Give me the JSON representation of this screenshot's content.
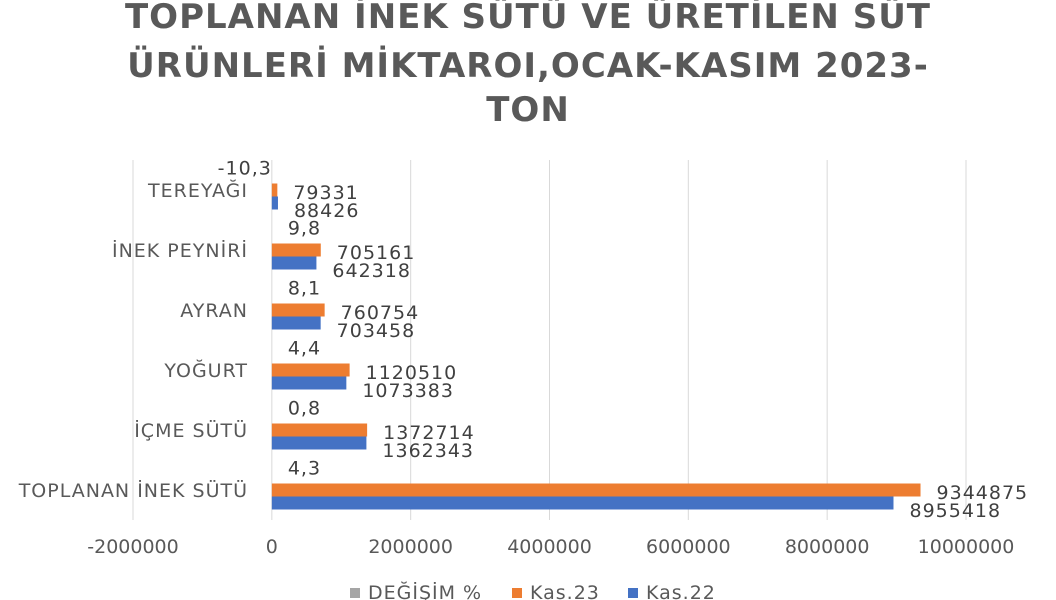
{
  "chart_data": {
    "type": "bar",
    "orientation": "horizontal",
    "title": "TOPLANAN İNEK SÜTÜ VE ÜRETİLEN SÜT ÜRÜNLERİ MİKTAROI,OCAK-KASIM 2023-TON",
    "title_lines": [
      "TOPLANAN İNEK SÜTÜ VE ÜRETİLEN SÜT",
      "ÜRÜNLERİ MİKTAROI,OCAK-KASIM 2023-",
      "TON"
    ],
    "categories": [
      "TOPLANAN İNEK SÜTÜ",
      "İÇME SÜTÜ",
      "YOĞURT",
      "AYRAN",
      "İNEK PEYNİRİ",
      "TEREYAĞI"
    ],
    "series": [
      {
        "name": "DEĞİŞİM %",
        "color": "#a5a5a5",
        "values": [
          4.3,
          0.8,
          4.4,
          8.1,
          9.8,
          -10.3
        ],
        "labels": [
          "4,3",
          "0,8",
          "4,4",
          "8,1",
          "9,8",
          "-10,3"
        ]
      },
      {
        "name": "Kas.23",
        "color": "#ed7d31",
        "values": [
          9344875,
          1372714,
          1120510,
          760754,
          705161,
          79331
        ],
        "labels": [
          "9344875",
          "1372714",
          "1120510",
          "760754",
          "705161",
          "79331"
        ]
      },
      {
        "name": "Kas.22",
        "color": "#4472c4",
        "values": [
          8955418,
          1362343,
          1073383,
          703458,
          642318,
          88426
        ],
        "labels": [
          "8955418",
          "1362343",
          "1073383",
          "703458",
          "642318",
          "88426"
        ]
      }
    ],
    "xlim": [
      -2000000,
      10000000
    ],
    "xticks": [
      -2000000,
      0,
      2000000,
      4000000,
      6000000,
      8000000,
      10000000
    ],
    "xtick_labels": [
      "-2000000",
      "0",
      "2000000",
      "4000000",
      "6000000",
      "8000000",
      "10000000"
    ],
    "grid": true,
    "legend_position": "bottom",
    "gridline_color": "#d9d9d9",
    "text_color": "#595959"
  }
}
